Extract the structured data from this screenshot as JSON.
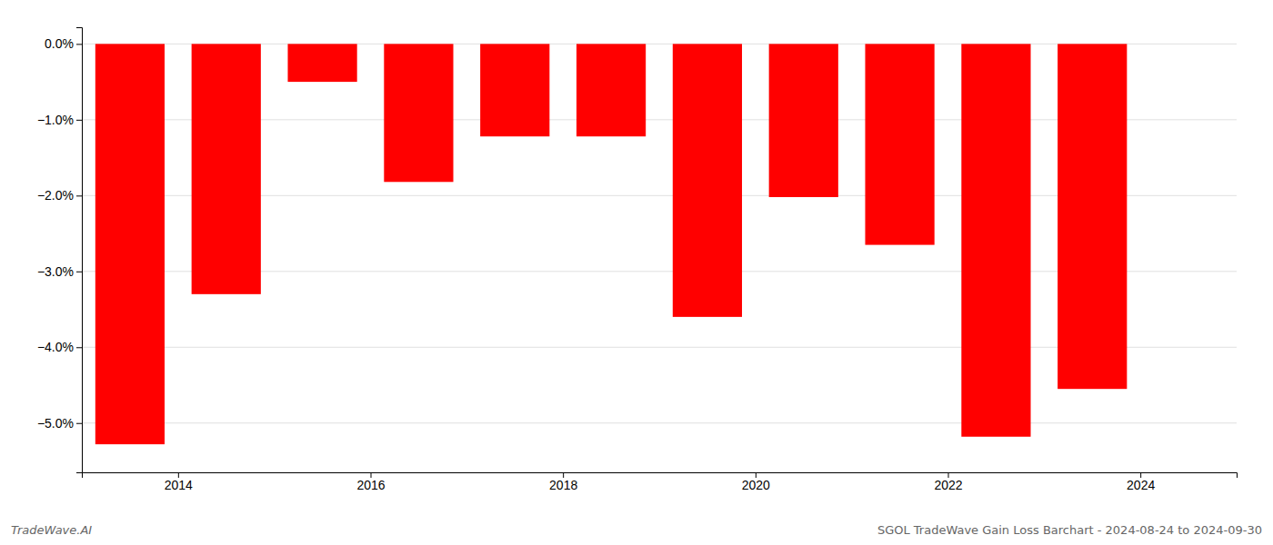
{
  "chart_data": {
    "type": "bar",
    "x": [
      2013.5,
      2014.5,
      2015.5,
      2016.5,
      2017.5,
      2018.5,
      2019.5,
      2020.5,
      2021.5,
      2022.5,
      2023.5
    ],
    "values": [
      -5.28,
      -3.3,
      -0.5,
      -1.82,
      -1.22,
      -1.22,
      -3.6,
      -2.02,
      -2.65,
      -5.18,
      -4.55
    ],
    "color": "#ff0000",
    "xlim": [
      2013,
      2025
    ],
    "xticks": [
      2014,
      2016,
      2018,
      2020,
      2022,
      2024
    ],
    "ylim": [
      -5.65,
      0.22
    ],
    "yticks": [
      {
        "value": 0.0,
        "label": "0.0%"
      },
      {
        "value": -1.0,
        "label": "−1.0%"
      },
      {
        "value": -2.0,
        "label": "−2.0%"
      },
      {
        "value": -3.0,
        "label": "−3.0%"
      },
      {
        "value": -4.0,
        "label": "−4.0%"
      },
      {
        "value": -5.0,
        "label": "−5.0%"
      }
    ],
    "grid": true,
    "annotations": [
      "TradeWave.AI",
      "SGOL TradeWave Gain Loss Barchart - 2024-08-24 to 2024-09-30"
    ]
  }
}
